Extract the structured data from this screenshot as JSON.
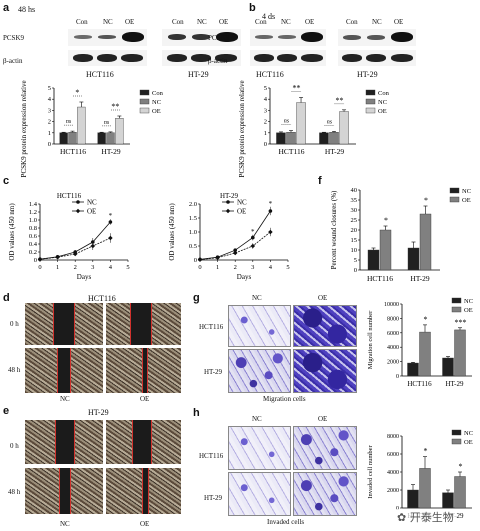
{
  "panel_labels": {
    "a": "a",
    "b": "b",
    "c": "c",
    "d": "d",
    "e": "e",
    "f": "f",
    "g": "g",
    "h": "h"
  },
  "panel_a": {
    "time": "48 hs",
    "lanes": [
      "Con",
      "NC",
      "OE",
      "Con",
      "NC",
      "OE"
    ],
    "rows": [
      "PCSK9",
      "β-actin"
    ],
    "cells": [
      "HCT116",
      "HT-29"
    ]
  },
  "panel_b": {
    "time": "4 ds",
    "lanes": [
      "Con",
      "NC",
      "OE",
      "Con",
      "NC",
      "OE"
    ],
    "rows": [
      "PCSK9",
      "β-actin"
    ],
    "cells": [
      "HCT116",
      "HT-29"
    ]
  },
  "colors": {
    "con": "#202020",
    "nc": "#808080",
    "oe": "#d4d4d4",
    "line_nc": "#111111",
    "line_oe": "#111111",
    "scratch_edge": "#d2322d",
    "stain": "#4a3cb0"
  },
  "chart_data": [
    {
      "id": "a-bar",
      "type": "bar",
      "ylabel": "PCSK9 protein expression relative intensity",
      "categories": [
        "HCT116",
        "HT-29"
      ],
      "series": [
        {
          "name": "Con",
          "values": [
            1.0,
            1.0
          ]
        },
        {
          "name": "NC",
          "values": [
            1.05,
            1.0
          ]
        },
        {
          "name": "OE",
          "values": [
            3.3,
            2.3
          ]
        }
      ],
      "errors": [
        [
          0.05,
          0.05
        ],
        [
          0.1,
          0.08
        ],
        [
          0.45,
          0.2
        ]
      ],
      "ylim": [
        0,
        5
      ],
      "yticks": [
        "0",
        "1",
        "2",
        "3",
        "4",
        "5"
      ],
      "annotations": [
        [
          "ns",
          "*"
        ],
        [
          "ns",
          "**"
        ]
      ],
      "legend": "right"
    },
    {
      "id": "b-bar",
      "type": "bar",
      "ylabel": "PCSK9 protein expression relative intensity",
      "categories": [
        "HCT116",
        "HT-29"
      ],
      "series": [
        {
          "name": "Con",
          "values": [
            1.0,
            1.0
          ]
        },
        {
          "name": "NC",
          "values": [
            1.05,
            1.05
          ]
        },
        {
          "name": "OE",
          "values": [
            3.7,
            2.9
          ]
        }
      ],
      "errors": [
        [
          0.08,
          0.05
        ],
        [
          0.15,
          0.08
        ],
        [
          0.45,
          0.15
        ]
      ],
      "ylim": [
        0,
        5
      ],
      "yticks": [
        "0",
        "1",
        "2",
        "3",
        "4",
        "5"
      ],
      "annotations": [
        [
          "ns",
          "**"
        ],
        [
          "ns",
          "**"
        ]
      ],
      "legend": "right"
    },
    {
      "id": "c-line-hct",
      "type": "line",
      "title": "HCT116",
      "xlabel": "Days",
      "ylabel": "OD values (450 nm)",
      "x": [
        0,
        1,
        2,
        3,
        4
      ],
      "series": [
        {
          "name": "NC",
          "values": [
            0.02,
            0.08,
            0.2,
            0.45,
            0.95
          ]
        },
        {
          "name": "OE",
          "values": [
            0.02,
            0.07,
            0.15,
            0.35,
            0.55
          ]
        }
      ],
      "errors": [
        [
          0.01,
          0.02,
          0.05,
          0.1,
          0.07
        ],
        [
          0.01,
          0.02,
          0.03,
          0.1,
          0.12
        ]
      ],
      "xlim": [
        0,
        5
      ],
      "ylim": [
        0,
        1.4
      ],
      "xticks": [
        "0",
        "1",
        "2",
        "3",
        "4",
        "5"
      ],
      "yticks": [
        "0",
        "0.2",
        "0.4",
        "0.6",
        "0.8",
        "1.0",
        "1.2",
        "1.4"
      ],
      "star": "*",
      "legend": "top-left"
    },
    {
      "id": "c-line-ht",
      "type": "line",
      "title": "HT-29",
      "xlabel": "Days",
      "ylabel": "OD values (450 nm)",
      "x": [
        0,
        1,
        2,
        3,
        4
      ],
      "series": [
        {
          "name": "NC",
          "values": [
            0.02,
            0.1,
            0.35,
            0.8,
            1.75
          ]
        },
        {
          "name": "OE",
          "values": [
            0.02,
            0.08,
            0.25,
            0.5,
            1.0
          ]
        }
      ],
      "errors": [
        [
          0.01,
          0.02,
          0.05,
          0.1,
          0.15
        ],
        [
          0.01,
          0.02,
          0.05,
          0.1,
          0.15
        ]
      ],
      "xlim": [
        0,
        5
      ],
      "ylim": [
        0,
        2.0
      ],
      "xticks": [
        "0",
        "1",
        "2",
        "3",
        "4",
        "5"
      ],
      "yticks": [
        "0",
        "0.5",
        "1.0",
        "1.5",
        "2.0"
      ],
      "star": "*",
      "legend": "top-left"
    },
    {
      "id": "f-bar",
      "type": "bar",
      "ylabel": "Percent wound closures (%)",
      "categories": [
        "HCT116",
        "HT-29"
      ],
      "series": [
        {
          "name": "NC",
          "values": [
            10,
            11
          ]
        },
        {
          "name": "OE",
          "values": [
            20,
            28
          ]
        }
      ],
      "errors": [
        [
          1,
          3
        ],
        [
          2,
          4
        ]
      ],
      "ylim": [
        0,
        40
      ],
      "yticks": [
        "0",
        "5",
        "10",
        "15",
        "20",
        "25",
        "30",
        "35",
        "40"
      ],
      "annotations": [
        [
          "*"
        ],
        [
          "*"
        ]
      ],
      "legend": "top-right"
    },
    {
      "id": "g-bar",
      "type": "bar",
      "ylabel": "Migration cell number",
      "categories": [
        "HCT116",
        "HT-29"
      ],
      "series": [
        {
          "name": "NC",
          "values": [
            1800,
            2500
          ]
        },
        {
          "name": "OE",
          "values": [
            6100,
            6400
          ]
        }
      ],
      "errors": [
        [
          100,
          200
        ],
        [
          1000,
          300
        ]
      ],
      "ylim": [
        0,
        10000
      ],
      "yticks": [
        "0",
        "2000",
        "4000",
        "6000",
        "8000",
        "10000"
      ],
      "annotations": [
        [
          "*"
        ],
        [
          "***"
        ]
      ],
      "legend": "top-right"
    },
    {
      "id": "h-bar",
      "type": "bar",
      "ylabel": "Invaded cell number",
      "categories": [
        "HCT116",
        "HT-29"
      ],
      "series": [
        {
          "name": "NC",
          "values": [
            2000,
            1700
          ]
        },
        {
          "name": "OE",
          "values": [
            4400,
            3500
          ]
        }
      ],
      "errors": [
        [
          600,
          300
        ],
        [
          1300,
          500
        ]
      ],
      "ylim": [
        0,
        8000
      ],
      "yticks": [
        "0",
        "2000",
        "4000",
        "6000",
        "8000"
      ],
      "annotations": [
        [
          "*"
        ],
        [
          "*"
        ]
      ],
      "legend": "top-right"
    }
  ],
  "panel_d": {
    "title": "HCT116",
    "rows": [
      "0 h",
      "48 h"
    ],
    "cols": [
      "NC",
      "OE"
    ]
  },
  "panel_e": {
    "title": "HT-29",
    "rows": [
      "0 h",
      "48 h"
    ],
    "cols": [
      "NC",
      "OE"
    ]
  },
  "panel_g": {
    "cols": [
      "NC",
      "OE"
    ],
    "rows": [
      "HCT116",
      "HT-29"
    ],
    "caption": "Migration cells"
  },
  "panel_h": {
    "cols": [
      "NC",
      "OE"
    ],
    "rows": [
      "HCT116",
      "HT-29"
    ],
    "caption": "Invaded cells"
  },
  "watermark": "开泰生物"
}
